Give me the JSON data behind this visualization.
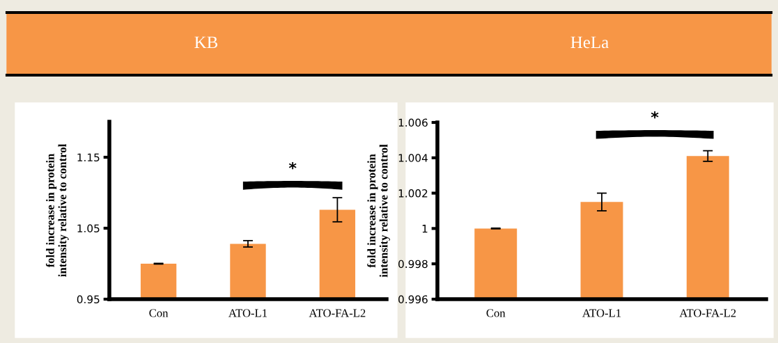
{
  "chart_data": [
    {
      "type": "bar",
      "title": "KB",
      "ylabel": "fold increase in protein\nintensity relative to control",
      "categories": [
        "Con",
        "ATO-L1",
        "ATO-FA-L2"
      ],
      "values": [
        1.0,
        1.028,
        1.076
      ],
      "errors": [
        0.0005,
        0.0045,
        0.017
      ],
      "color": "#f79646",
      "ylim": [
        0.95,
        1.2
      ],
      "yticks": [
        0.95,
        1.05,
        1.15
      ],
      "grid": false,
      "annotations": [
        "*"
      ]
    },
    {
      "type": "bar",
      "title": "HeLa",
      "ylabel": "fold increase in protein\nintensity relative to control",
      "categories": [
        "Con",
        "ATO-L1",
        "ATO-FA-L2"
      ],
      "values": [
        1.0,
        1.0015,
        1.0041
      ],
      "errors": [
        2e-05,
        0.0005,
        0.0003
      ],
      "color": "#f79646",
      "ylim": [
        0.996,
        1.006
      ],
      "yticks": [
        0.996,
        0.998,
        1,
        1.002,
        1.004,
        1.006
      ],
      "grid": false,
      "annotations": [
        "*"
      ]
    }
  ]
}
